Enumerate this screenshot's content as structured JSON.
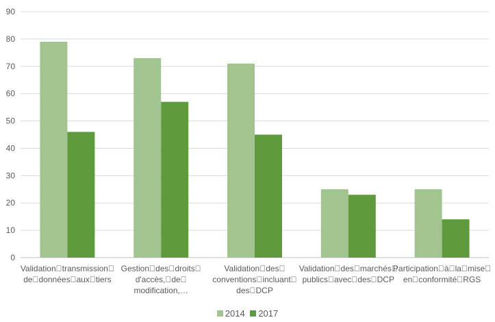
{
  "chart_data": {
    "type": "bar",
    "categories": [
      [
        "Validationtransmission",
        "dedonnéesauxtiers"
      ],
      [
        "Gestiondesdroits",
        "d'accès,de",
        "modification,…"
      ],
      [
        "Validationdes",
        "conventionsincluant",
        "desDCP"
      ],
      [
        "Validationdesmarchés",
        "publicsavecdesDCP"
      ],
      [
        "Participationàlamise",
        "enconformitéRGS"
      ]
    ],
    "series": [
      {
        "name": "2014",
        "color": "#a2c490",
        "values": [
          79,
          73,
          71,
          25,
          25
        ]
      },
      {
        "name": "2017",
        "color": "#5f9a3d",
        "values": [
          46,
          57,
          45,
          23,
          14
        ]
      }
    ],
    "y_ticks": [
      "0",
      "10",
      "20",
      "30",
      "40",
      "50",
      "60",
      "70",
      "80",
      "90"
    ],
    "ylim": [
      0,
      90
    ],
    "grid": true,
    "legend_position": "bottom",
    "title": "",
    "xlabel": "",
    "ylabel": ""
  }
}
